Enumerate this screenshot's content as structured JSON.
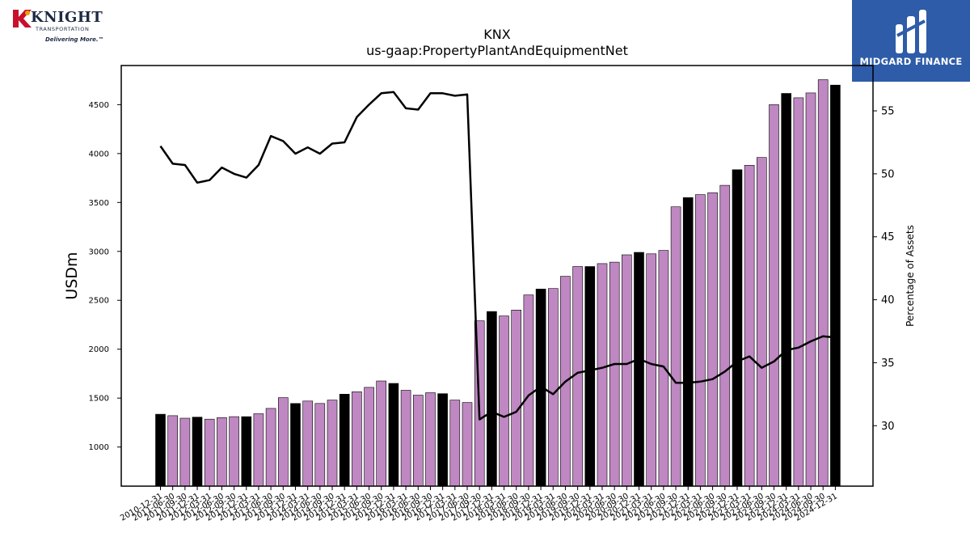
{
  "header": {
    "company_logo_text": "KNIGHT",
    "company_logo_subtext": "TRANSPORTATION",
    "company_tagline": "Delivering More.™",
    "sponsor_logo_text": "MIDGARD FINANCE"
  },
  "colors": {
    "bar_default": "#bf88c2",
    "bar_highlight": "#000000",
    "line": "#000000",
    "sponsor_bg": "#2e5ca8",
    "company_red": "#c8102e"
  },
  "chart_data": {
    "type": "bar",
    "title": "KNX",
    "subtitle": "us-gaap:PropertyPlantAndEquipmentNet",
    "ylabel": "USDm",
    "y2label": "Percentage of Assets",
    "ylim": [
      600,
      4900
    ],
    "y2lim": [
      25.2,
      58.6
    ],
    "yticks": [
      1000,
      1500,
      2000,
      2500,
      3000,
      3500,
      4000,
      4500
    ],
    "y2ticks": [
      30,
      35,
      40,
      45,
      50,
      55
    ],
    "grid": false,
    "tick_labels": [
      "2010-12-31",
      "2011-06-30",
      "2011-09-30",
      "2011-12-31",
      "2012-03-31",
      "2012-06-30",
      "2012-09-30",
      "2012-12-31",
      "2013-03-31",
      "2013-06-30",
      "2013-09-30",
      "2013-12-31",
      "2014-03-31",
      "2014-06-30",
      "2014-09-30",
      "2014-12-31",
      "2015-03-31",
      "2015-06-30",
      "2015-09-30",
      "2015-12-31",
      "2016-03-31",
      "2016-06-30",
      "2016-09-30",
      "2016-12-31",
      "2017-03-31",
      "2017-06-30",
      "2017-09-30",
      "2017-12-31",
      "2018-03-31",
      "2018-06-30",
      "2018-09-30",
      "2018-12-31",
      "2019-03-31",
      "2019-06-30",
      "2019-09-30",
      "2019-12-31",
      "2020-03-31",
      "2020-06-30",
      "2020-09-30",
      "2020-12-31",
      "2021-03-31",
      "2021-06-30",
      "2021-09-30",
      "2021-12-31",
      "2022-03-31",
      "2022-06-30",
      "2022-09-30",
      "2022-12-31",
      "2023-03-31",
      "2023-06-30",
      "2023-09-30",
      "2023-12-31",
      "2024-03-31",
      "2024-06-30",
      "2024-09-30",
      "2024-12-31"
    ],
    "highlight": [
      true,
      false,
      false,
      true,
      false,
      false,
      false,
      true,
      false,
      false,
      false,
      true,
      false,
      false,
      false,
      true,
      false,
      false,
      false,
      true,
      false,
      false,
      false,
      true,
      false,
      false,
      false,
      true,
      false,
      false,
      false,
      true,
      false,
      false,
      false,
      true,
      false,
      false,
      false,
      true,
      false,
      false,
      false,
      true,
      false,
      false,
      false,
      true,
      false,
      false,
      false,
      true,
      false,
      false,
      false,
      true
    ],
    "series": [
      {
        "kind": "bar",
        "axis": "left",
        "values": [
          1335,
          1320,
          1295,
          1305,
          1285,
          1300,
          1310,
          1310,
          1340,
          1395,
          1505,
          1445,
          1470,
          1445,
          1480,
          1540,
          1565,
          1610,
          1675,
          1650,
          1580,
          1530,
          1555,
          1545,
          1480,
          1455,
          2290,
          2385,
          2340,
          2400,
          2555,
          2615,
          2620,
          2745,
          2845,
          2845,
          2875,
          2890,
          2965,
          2990,
          2975,
          3010,
          3455,
          3550,
          3580,
          3600,
          3675,
          3835,
          3880,
          3960,
          4500,
          4615,
          4570,
          4620,
          4755,
          4700
        ]
      },
      {
        "kind": "line",
        "axis": "right",
        "values": [
          52.2,
          50.8,
          50.7,
          49.3,
          49.5,
          50.5,
          50.0,
          49.7,
          50.7,
          53.0,
          52.6,
          51.6,
          52.1,
          51.6,
          52.4,
          52.5,
          54.5,
          55.5,
          56.4,
          56.5,
          55.2,
          55.1,
          56.4,
          56.4,
          56.2,
          56.3,
          30.5,
          31.1,
          30.7,
          31.1,
          32.4,
          33.1,
          32.5,
          33.5,
          34.2,
          34.4,
          34.6,
          34.9,
          34.9,
          35.3,
          34.9,
          34.7,
          33.4,
          33.4,
          33.5,
          33.7,
          34.3,
          35.1,
          35.5,
          34.6,
          35.1,
          36.0,
          36.2,
          36.7,
          37.1,
          37.0
        ]
      }
    ]
  }
}
